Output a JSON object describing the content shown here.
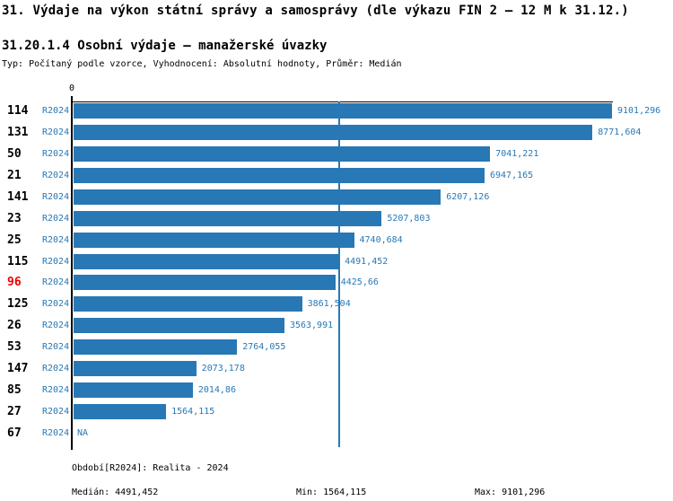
{
  "header": {
    "title": "31. Výdaje na výkon státní správy a samosprávy (dle výkazu FIN 2 – 12 M k 31.12.)",
    "subtitle": "31.20.1.4 Osobní výdaje – manažerské úvazky",
    "meta": "Typ: Počítaný podle vzorce, Vyhodnocení: Absolutní hodnoty, Průměr: Medián"
  },
  "chart_data": {
    "type": "bar",
    "orientation": "horizontal",
    "title": "31.20.1.4 Osobní výdaje – manažerské úvazky",
    "series_label": "R2024",
    "zero_label": "0",
    "xlim": [
      0,
      9101.296
    ],
    "median": 4491.452,
    "grid": false,
    "colors": {
      "bar": "#2878b5",
      "value_text": "#2878b5",
      "period_text": "#2878b5",
      "row_label": "#000000",
      "row_label_highlight": "#ee0000",
      "median_line": "#2878b5",
      "axis": "#000000"
    },
    "rows": [
      {
        "id": "114",
        "period": "R2024",
        "value": 9101.296,
        "label": "9101,296",
        "highlight": false
      },
      {
        "id": "131",
        "period": "R2024",
        "value": 8771.604,
        "label": "8771,604",
        "highlight": false
      },
      {
        "id": "50",
        "period": "R2024",
        "value": 7041.221,
        "label": "7041,221",
        "highlight": false
      },
      {
        "id": "21",
        "period": "R2024",
        "value": 6947.165,
        "label": "6947,165",
        "highlight": false
      },
      {
        "id": "141",
        "period": "R2024",
        "value": 6207.126,
        "label": "6207,126",
        "highlight": false
      },
      {
        "id": "23",
        "period": "R2024",
        "value": 5207.803,
        "label": "5207,803",
        "highlight": false
      },
      {
        "id": "25",
        "period": "R2024",
        "value": 4740.684,
        "label": "4740,684",
        "highlight": false
      },
      {
        "id": "115",
        "period": "R2024",
        "value": 4491.452,
        "label": "4491,452",
        "highlight": false
      },
      {
        "id": "96",
        "period": "R2024",
        "value": 4425.66,
        "label": "4425,66",
        "highlight": true
      },
      {
        "id": "125",
        "period": "R2024",
        "value": 3861.504,
        "label": "3861,504",
        "highlight": false
      },
      {
        "id": "26",
        "period": "R2024",
        "value": 3563.991,
        "label": "3563,991",
        "highlight": false
      },
      {
        "id": "53",
        "period": "R2024",
        "value": 2764.055,
        "label": "2764,055",
        "highlight": false
      },
      {
        "id": "147",
        "period": "R2024",
        "value": 2073.178,
        "label": "2073,178",
        "highlight": false
      },
      {
        "id": "85",
        "period": "R2024",
        "value": 2014.86,
        "label": "2014,86",
        "highlight": false
      },
      {
        "id": "27",
        "period": "R2024",
        "value": 1564.115,
        "label": "1564,115",
        "highlight": false
      },
      {
        "id": "67",
        "period": "R2024",
        "value": null,
        "label": "NA",
        "highlight": false
      }
    ]
  },
  "footer": {
    "period": "Období[R2024]: Realita - 2024",
    "median": "Medián: 4491,452",
    "min": "Min: 1564,115",
    "max": "Max: 9101,296"
  }
}
